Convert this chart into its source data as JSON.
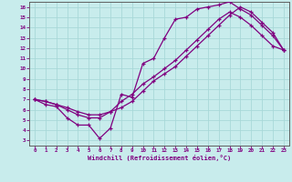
{
  "xlabel": "Windchill (Refroidissement éolien,°C)",
  "bg_color": "#c8ecec",
  "grid_color": "#a8d8d8",
  "line_color": "#800080",
  "xlim": [
    -0.5,
    23.5
  ],
  "ylim": [
    2.5,
    16.5
  ],
  "xticks": [
    0,
    1,
    2,
    3,
    4,
    5,
    6,
    7,
    8,
    9,
    10,
    11,
    12,
    13,
    14,
    15,
    16,
    17,
    18,
    19,
    20,
    21,
    22,
    23
  ],
  "yticks": [
    3,
    4,
    5,
    6,
    7,
    8,
    9,
    10,
    11,
    12,
    13,
    14,
    15,
    16
  ],
  "line1_x": [
    0,
    1,
    2,
    3,
    4,
    5,
    6,
    7,
    8,
    9,
    10,
    11,
    12,
    13,
    14,
    15,
    16,
    17,
    18,
    19,
    20,
    21,
    22,
    23
  ],
  "line1_y": [
    7.0,
    6.5,
    6.3,
    5.2,
    4.5,
    4.5,
    3.2,
    4.2,
    7.5,
    7.2,
    10.5,
    11.0,
    13.0,
    14.8,
    15.0,
    15.8,
    16.0,
    16.2,
    16.5,
    15.8,
    15.2,
    14.2,
    13.2,
    11.8
  ],
  "line2_x": [
    0,
    1,
    2,
    3,
    4,
    5,
    6,
    7,
    8,
    9,
    10,
    11,
    12,
    13,
    14,
    15,
    16,
    17,
    18,
    19,
    20,
    21,
    22,
    23
  ],
  "line2_y": [
    7.0,
    6.8,
    6.5,
    6.0,
    5.5,
    5.2,
    5.2,
    5.8,
    6.8,
    7.5,
    8.5,
    9.2,
    10.0,
    10.8,
    11.8,
    12.8,
    13.8,
    14.8,
    15.5,
    15.0,
    14.2,
    13.2,
    12.2,
    11.8
  ],
  "line3_x": [
    0,
    1,
    2,
    3,
    4,
    5,
    6,
    7,
    8,
    9,
    10,
    11,
    12,
    13,
    14,
    15,
    16,
    17,
    18,
    19,
    20,
    21,
    22,
    23
  ],
  "line3_y": [
    7.0,
    6.8,
    6.5,
    6.2,
    5.8,
    5.5,
    5.5,
    5.8,
    6.2,
    6.8,
    7.8,
    8.8,
    9.5,
    10.2,
    11.2,
    12.2,
    13.2,
    14.2,
    15.2,
    16.0,
    15.5,
    14.5,
    13.5,
    11.8
  ]
}
